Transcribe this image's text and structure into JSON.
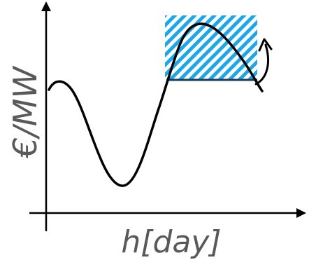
{
  "axes": {
    "x_label": "h[day]",
    "y_label": "€/MW"
  },
  "colors": {
    "curve": "#000000",
    "axis": "#000000",
    "hatch": "#1ea7e8",
    "baseline": "#1f3d5a",
    "label": "#595959"
  },
  "icons": {
    "upturn_arrow": "curved-arrow-up-icon"
  }
}
